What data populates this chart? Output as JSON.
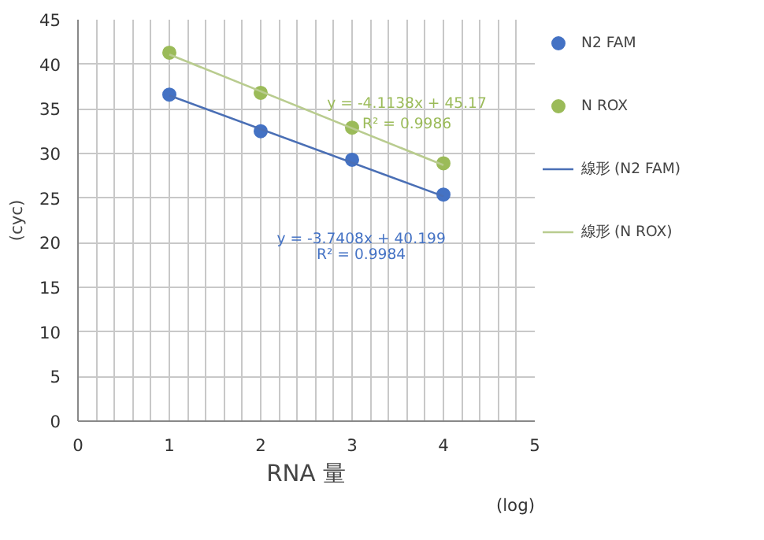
{
  "chart_data": {
    "type": "scatter",
    "xlabel": "RNA 量",
    "ylabel": "(cyc)",
    "xlim": [
      0,
      5
    ],
    "ylim": [
      0,
      45
    ],
    "xticks": [
      0,
      {
        "value": 0.2,
        "label": null
      },
      {
        "value": 0.4,
        "label": null
      },
      {
        "value": 0.6,
        "label": null
      },
      {
        "value": 0.8,
        "label": null
      },
      1,
      {
        "value": 1.2,
        "label": null
      },
      {
        "value": 1.4,
        "label": null
      },
      {
        "value": 1.6,
        "label": null
      },
      {
        "value": 1.8,
        "label": null
      },
      2,
      {
        "value": 2.2,
        "label": null
      },
      {
        "value": 2.4,
        "label": null
      },
      {
        "value": 2.6,
        "label": null
      },
      {
        "value": 2.8,
        "label": null
      },
      3,
      {
        "value": 3.2,
        "label": null
      },
      {
        "value": 3.4,
        "label": null
      },
      {
        "value": 3.6,
        "label": null
      },
      {
        "value": 3.8,
        "label": null
      },
      4,
      {
        "value": 4.2,
        "label": null
      },
      {
        "value": 4.4,
        "label": null
      },
      {
        "value": 4.6,
        "label": null
      },
      {
        "value": 4.8,
        "label": null
      },
      5
    ],
    "yticks": [
      0,
      5,
      10,
      15,
      20,
      25,
      30,
      35,
      40,
      45
    ],
    "grid": true,
    "legend": "right",
    "series": [
      {
        "name": "N2 FAM",
        "marker": "circle",
        "color": "#4472c4",
        "x": [
          1,
          2,
          3,
          4
        ],
        "values": [
          36.6,
          32.5,
          29.3,
          25.4
        ]
      },
      {
        "name": "N ROX",
        "marker": "circle",
        "color": "#9bbb59",
        "x": [
          1,
          2,
          3,
          4
        ],
        "values": [
          41.3,
          36.8,
          32.9,
          28.9
        ]
      },
      {
        "name": "線形 (N2 FAM)",
        "type": "line",
        "color": "#4a6fb5",
        "x": [
          1,
          4
        ],
        "values": [
          36.5,
          25.2
        ]
      },
      {
        "name": "線形 (N ROX)",
        "type": "line",
        "color": "#b9cc8f",
        "x": [
          1,
          4
        ],
        "values": [
          41.1,
          28.7
        ]
      }
    ],
    "annotations": [
      "y = -4.1138x + 45.17\nR² = 0.9986",
      "y = -3.7408x + 40.199",
      "R² = 0.9984",
      "(log)"
    ]
  }
}
